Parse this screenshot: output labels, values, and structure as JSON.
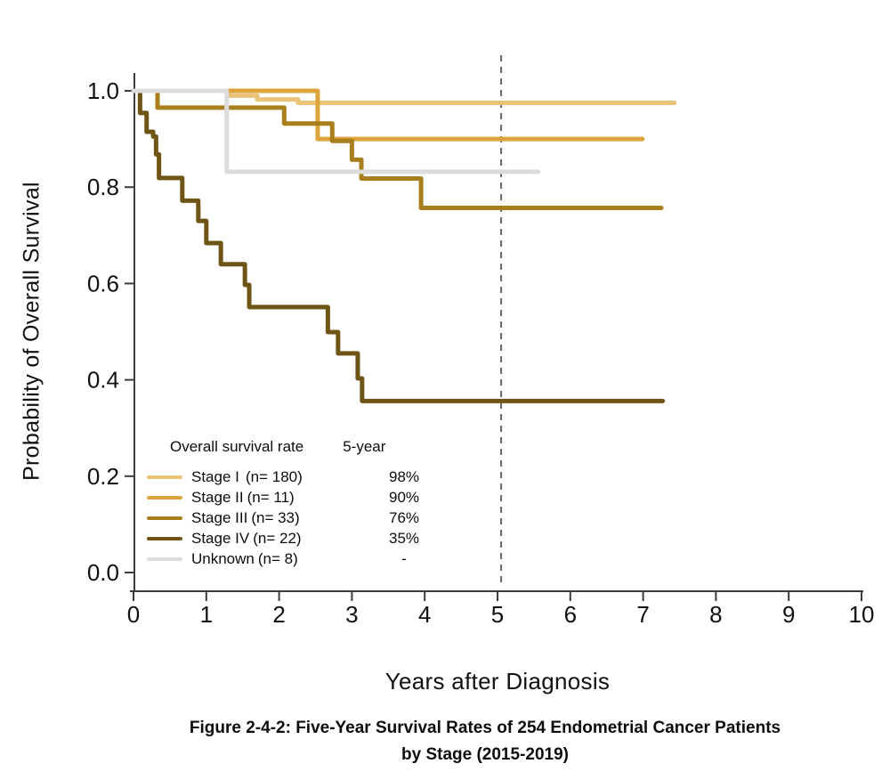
{
  "figure": {
    "x_axis_label": "Years after Diagnosis",
    "y_axis_label": "Probability of Overall Survival",
    "caption": {
      "line1": "Figure 2-4-2: Five-Year Survival Rates of 254 Endometrial Cancer Patients",
      "line2": "by Stage (2015-2019)"
    }
  },
  "legend": {
    "title": "Overall survival rate",
    "rate_header": "5-year",
    "entries": [
      {
        "name": "Stage I",
        "n": "(n= 180)",
        "rate": "98%",
        "color": "#e9c377"
      },
      {
        "name": "Stage II",
        "n": "(n= 11)",
        "rate": "90%",
        "color": "#dda43c"
      },
      {
        "name": "Stage III",
        "n": "(n= 33)",
        "rate": "76%",
        "color": "#a97f1e"
      },
      {
        "name": "Stage IV",
        "n": "(n= 22)",
        "rate": "35%",
        "color": "#6e5515"
      },
      {
        "name": "Unknown",
        "n": "(n= 8)",
        "rate": "-",
        "color": "#dcdcdc"
      }
    ]
  },
  "chart_data": {
    "type": "line",
    "subtype": "kaplan_meier_step",
    "title": "",
    "xlabel": "Years after Diagnosis",
    "ylabel": "Probability of Overall Survival",
    "xlim": [
      0,
      10
    ],
    "ylim": [
      0.0,
      1.0
    ],
    "xticks": [
      0,
      1,
      2,
      3,
      4,
      5,
      6,
      7,
      8,
      9,
      10
    ],
    "xtick_labels": [
      "0",
      "1",
      "2",
      "3",
      "4",
      "5",
      "6",
      "7",
      "8",
      "9",
      "10"
    ],
    "yticks": [
      0.0,
      0.2,
      0.4,
      0.6,
      0.8,
      1.0
    ],
    "ytick_labels": [
      "0.0",
      "0.2",
      "0.4",
      "0.6",
      "0.8",
      "1.0"
    ],
    "grid": false,
    "legend_position": "lower-left-inside",
    "total_patients": 254,
    "reference_line": {
      "x": 5.05,
      "style": "dashed",
      "color": "#666666"
    },
    "series": [
      {
        "name": "Stage I",
        "n": 180,
        "five_year_rate": "98%",
        "color": "#e9c377",
        "steps": [
          [
            0,
            1.0
          ],
          [
            1.3,
            0.99
          ],
          [
            1.7,
            0.982
          ],
          [
            2.26,
            0.975
          ]
        ],
        "end_x": 7.43
      },
      {
        "name": "Stage II",
        "n": 11,
        "five_year_rate": "90%",
        "color": "#dda43c",
        "steps": [
          [
            0,
            1.0
          ],
          [
            2.53,
            0.9
          ]
        ],
        "end_x": 6.99
      },
      {
        "name": "Stage III",
        "n": 33,
        "five_year_rate": "76%",
        "color": "#a97f1e",
        "steps": [
          [
            0,
            1.0
          ],
          [
            0.33,
            0.965
          ],
          [
            2.07,
            0.932
          ],
          [
            2.73,
            0.896
          ],
          [
            3.0,
            0.857
          ],
          [
            3.13,
            0.818
          ],
          [
            3.95,
            0.757
          ]
        ],
        "end_x": 7.25
      },
      {
        "name": "Stage IV",
        "n": 22,
        "five_year_rate": "35%",
        "color": "#6e5515",
        "steps": [
          [
            0,
            1.0
          ],
          [
            0.09,
            0.954
          ],
          [
            0.18,
            0.915
          ],
          [
            0.27,
            0.905
          ],
          [
            0.31,
            0.868
          ],
          [
            0.35,
            0.819
          ],
          [
            0.67,
            0.772
          ],
          [
            0.89,
            0.73
          ],
          [
            1.0,
            0.684
          ],
          [
            1.2,
            0.64
          ],
          [
            1.53,
            0.597
          ],
          [
            1.59,
            0.551
          ],
          [
            2.67,
            0.499
          ],
          [
            2.81,
            0.455
          ],
          [
            3.08,
            0.403
          ],
          [
            3.14,
            0.356
          ]
        ],
        "end_x": 7.27
      },
      {
        "name": "Unknown",
        "n": 8,
        "five_year_rate": "-",
        "color": "#dcdcdc",
        "steps": [
          [
            0,
            1.0
          ],
          [
            1.28,
            0.832
          ]
        ],
        "end_x": 5.56
      }
    ]
  }
}
